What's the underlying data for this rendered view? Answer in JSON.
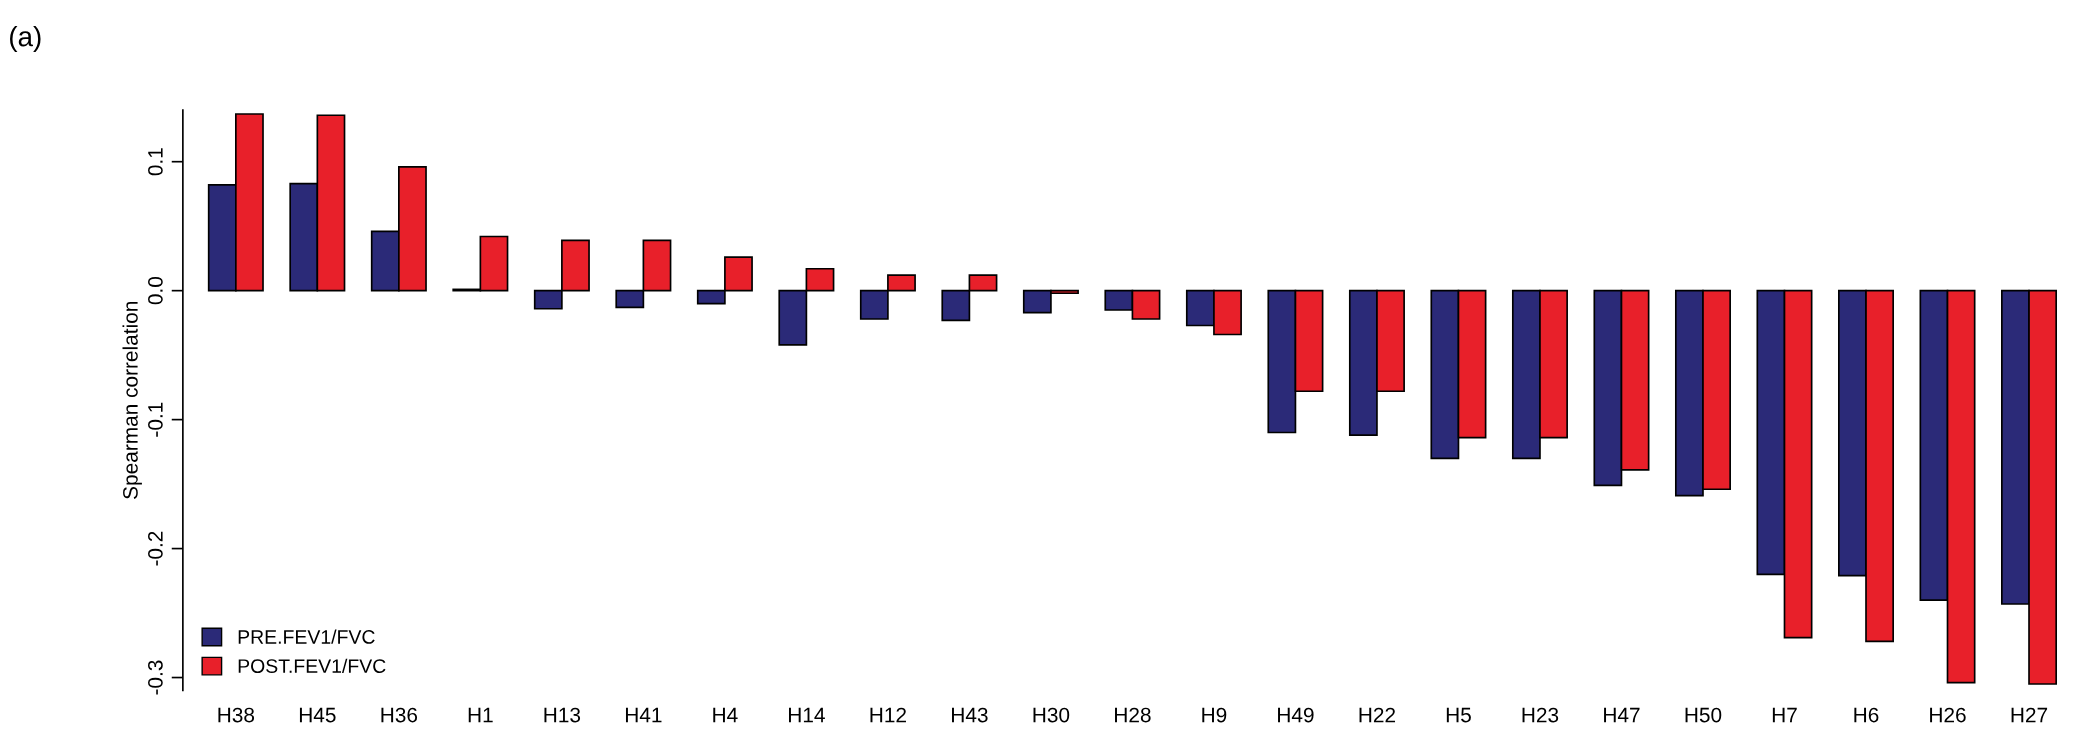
{
  "chart_data": {
    "type": "bar",
    "title": "(a)",
    "ylabel": "Spearman correlation",
    "categories": [
      "H38",
      "H45",
      "H36",
      "H1",
      "H13",
      "H41",
      "H4",
      "H14",
      "H12",
      "H43",
      "H30",
      "H28",
      "H9",
      "H49",
      "H22",
      "H5",
      "H23",
      "H47",
      "H50",
      "H7",
      "H6",
      "H26",
      "H27"
    ],
    "series": [
      {
        "name": "PRE.FEV1/FVC",
        "color": "#2b2a78",
        "values": [
          0.082,
          0.083,
          0.046,
          0.001,
          -0.014,
          -0.013,
          -0.01,
          -0.042,
          -0.022,
          -0.023,
          -0.017,
          -0.015,
          -0.027,
          -0.11,
          -0.112,
          -0.13,
          -0.13,
          -0.151,
          -0.159,
          -0.22,
          -0.221,
          -0.24,
          -0.243
        ]
      },
      {
        "name": "POST.FEV1/FVC",
        "color": "#e8202a",
        "values": [
          0.137,
          0.136,
          0.096,
          0.042,
          0.039,
          0.039,
          0.026,
          0.017,
          0.012,
          0.012,
          -0.002,
          -0.022,
          -0.034,
          -0.078,
          -0.078,
          -0.114,
          -0.114,
          -0.139,
          -0.154,
          -0.269,
          -0.272,
          -0.304,
          -0.305
        ]
      }
    ],
    "ylim": [
      -0.31,
      0.14
    ],
    "yticks": [
      {
        "value": -0.3,
        "label": "-0.3"
      },
      {
        "value": -0.2,
        "label": "-0.2"
      },
      {
        "value": -0.1,
        "label": "-0.1"
      },
      {
        "value": 0,
        "label": "0.0"
      },
      {
        "value": 0.1,
        "label": "0.1"
      }
    ],
    "legend": "bottom left",
    "grid": false
  }
}
